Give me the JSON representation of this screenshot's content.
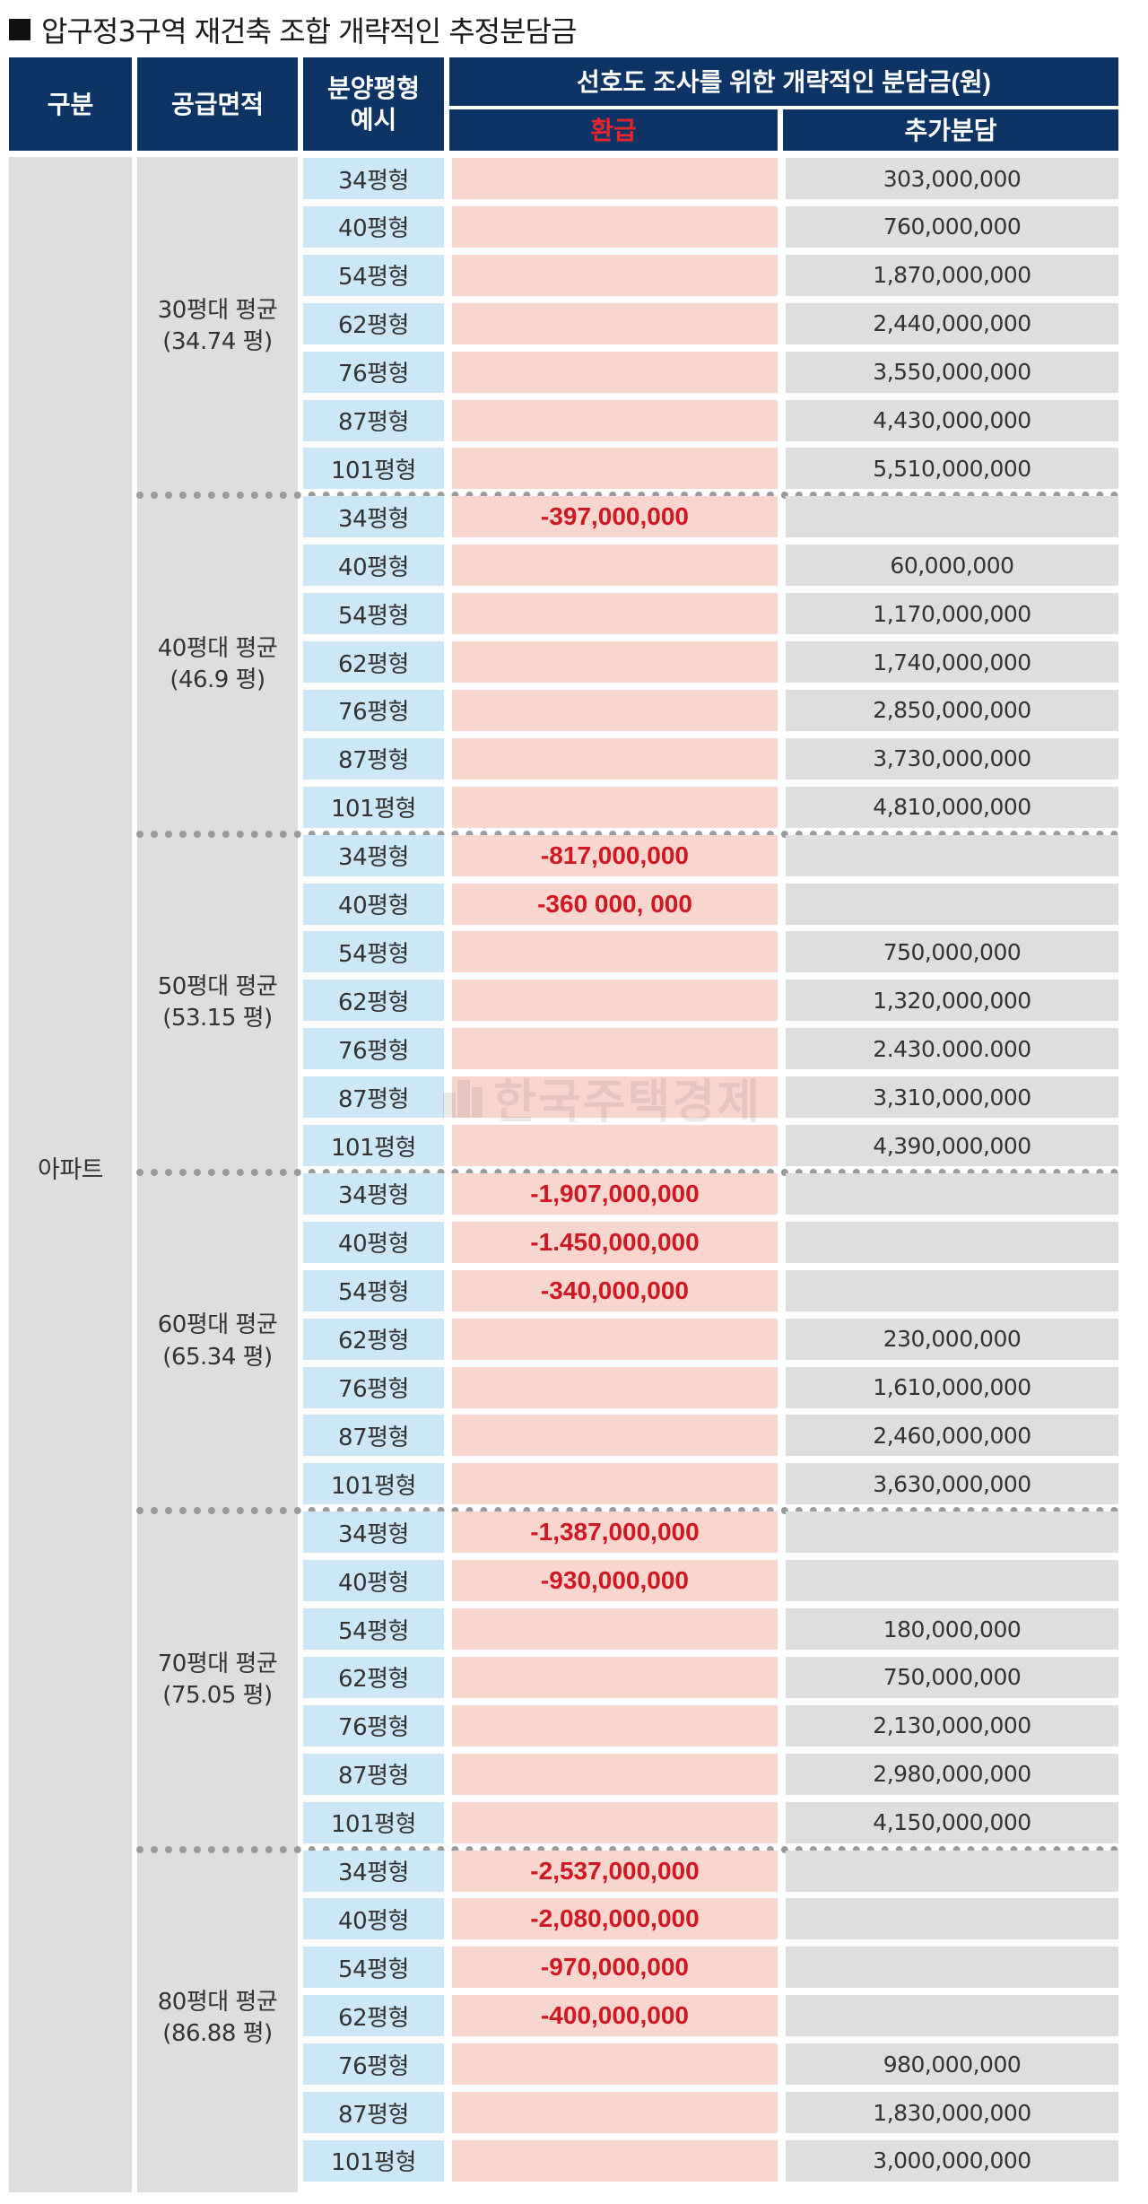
{
  "title": "압구정3구역 재건축 조합 개략적인 추정분담금",
  "colors": {
    "header_bg": "#0e3465",
    "refund_text": "#cf1822",
    "type_bg": "#cbe7f8",
    "refund_bg": "#f9d6cd",
    "grey_bg": "#dedede"
  },
  "header": {
    "category": "구분",
    "supply_area": "공급면적",
    "unit_type": "분양평형\n예시",
    "group_title": "선호도 조사를 위한 개략적인 분담금(원)",
    "refund": "환급",
    "additional": "추가분담"
  },
  "category_label": "아파트",
  "watermark": "한국주택경제",
  "groups": [
    {
      "label": "30평대 평균\n(34.74 평)",
      "rows": [
        {
          "type": "34평형",
          "refund": "",
          "add": "303,000,000"
        },
        {
          "type": "40평형",
          "refund": "",
          "add": "760,000,000"
        },
        {
          "type": "54평형",
          "refund": "",
          "add": "1,870,000,000"
        },
        {
          "type": "62평형",
          "refund": "",
          "add": "2,440,000,000"
        },
        {
          "type": "76평형",
          "refund": "",
          "add": "3,550,000,000"
        },
        {
          "type": "87평형",
          "refund": "",
          "add": "4,430,000,000"
        },
        {
          "type": "101평형",
          "refund": "",
          "add": "5,510,000,000"
        }
      ]
    },
    {
      "label": "40평대 평균\n(46.9 평)",
      "rows": [
        {
          "type": "34평형",
          "refund": "-397,000,000",
          "add": ""
        },
        {
          "type": "40평형",
          "refund": "",
          "add": "60,000,000"
        },
        {
          "type": "54평형",
          "refund": "",
          "add": "1,170,000,000"
        },
        {
          "type": "62평형",
          "refund": "",
          "add": "1,740,000,000"
        },
        {
          "type": "76평형",
          "refund": "",
          "add": "2,850,000,000"
        },
        {
          "type": "87평형",
          "refund": "",
          "add": "3,730,000,000"
        },
        {
          "type": "101평형",
          "refund": "",
          "add": "4,810,000,000"
        }
      ]
    },
    {
      "label": "50평대 평균\n(53.15 평)",
      "rows": [
        {
          "type": "34평형",
          "refund": "-817,000,000",
          "add": ""
        },
        {
          "type": "40평형",
          "refund": "-360 000, 000",
          "add": ""
        },
        {
          "type": "54평형",
          "refund": "",
          "add": "750,000,000"
        },
        {
          "type": "62평형",
          "refund": "",
          "add": "1,320,000,000"
        },
        {
          "type": "76평형",
          "refund": "",
          "add": "2.430.000.000"
        },
        {
          "type": "87평형",
          "refund": "",
          "add": "3,310,000,000"
        },
        {
          "type": "101평형",
          "refund": "",
          "add": "4,390,000,000"
        }
      ]
    },
    {
      "label": "60평대 평균\n(65.34 평)",
      "rows": [
        {
          "type": "34평형",
          "refund": "-1,907,000,000",
          "add": ""
        },
        {
          "type": "40평형",
          "refund": "-1.450,000,000",
          "add": ""
        },
        {
          "type": "54평형",
          "refund": "-340,000,000",
          "add": ""
        },
        {
          "type": "62평형",
          "refund": "",
          "add": "230,000,000"
        },
        {
          "type": "76평형",
          "refund": "",
          "add": "1,610,000,000"
        },
        {
          "type": "87평형",
          "refund": "",
          "add": "2,460,000,000"
        },
        {
          "type": "101평형",
          "refund": "",
          "add": "3,630,000,000"
        }
      ]
    },
    {
      "label": "70평대 평균\n(75.05 평)",
      "rows": [
        {
          "type": "34평형",
          "refund": "-1,387,000,000",
          "add": ""
        },
        {
          "type": "40평형",
          "refund": "-930,000,000",
          "add": ""
        },
        {
          "type": "54평형",
          "refund": "",
          "add": "180,000,000"
        },
        {
          "type": "62평형",
          "refund": "",
          "add": "750,000,000"
        },
        {
          "type": "76평형",
          "refund": "",
          "add": "2,130,000,000"
        },
        {
          "type": "87평형",
          "refund": "",
          "add": "2,980,000,000"
        },
        {
          "type": "101평형",
          "refund": "",
          "add": "4,150,000,000"
        }
      ]
    },
    {
      "label": "80평대 평균\n(86.88 평)",
      "rows": [
        {
          "type": "34평형",
          "refund": "-2,537,000,000",
          "add": ""
        },
        {
          "type": "40평형",
          "refund": "-2,080,000,000",
          "add": ""
        },
        {
          "type": "54평형",
          "refund": "-970,000,000",
          "add": ""
        },
        {
          "type": "62평형",
          "refund": "-400,000,000",
          "add": ""
        },
        {
          "type": "76평형",
          "refund": "",
          "add": "980,000,000"
        },
        {
          "type": "87평형",
          "refund": "",
          "add": "1,830,000,000"
        },
        {
          "type": "101평형",
          "refund": "",
          "add": "3,000,000,000"
        }
      ]
    }
  ]
}
